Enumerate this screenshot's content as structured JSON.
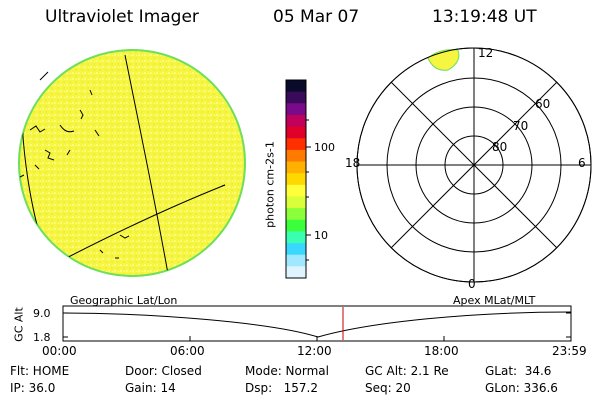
{
  "header": {
    "instrument": "Ultraviolet Imager",
    "date": "05 Mar 07",
    "time": "13:19:48 UT"
  },
  "colorbar": {
    "unit_label": "photon cm-2s-1",
    "ticks": [
      "100",
      "10"
    ],
    "colors": [
      "#0a0a2a",
      "#3a0a5a",
      "#7a0a8a",
      "#c0005a",
      "#e0002a",
      "#ff3000",
      "#ff7a00",
      "#ffb000",
      "#ffd800",
      "#ffff3a",
      "#d8ff3a",
      "#8aff3a",
      "#3aff3a",
      "#3affb0",
      "#3ad8ff",
      "#a0e8ff",
      "#e0f4ff"
    ]
  },
  "polar_plot": {
    "mlt_labels": [
      "12",
      "18",
      "6",
      "0"
    ],
    "lat_labels": [
      "60",
      "70",
      "80"
    ]
  },
  "altitude_plot": {
    "left_title": "Geographic Lat/Lon",
    "right_title": "Apex MLat/MLT",
    "ylabel": "GC Alt",
    "yticks": [
      "9.0",
      "1.8"
    ],
    "xticks": [
      "00:00",
      "06:00",
      "12:00",
      "18:00",
      "23:59"
    ],
    "current_time_marker_color": "#c00000"
  },
  "status": {
    "flt": "Flt: HOME",
    "ip": "IP: 36.0",
    "door": "Door: Closed",
    "gain": "Gain: 14",
    "mode": "Mode: Normal",
    "dsp": "Dsp:   157.2",
    "gcalt": "GC Alt: 2.1 Re",
    "seq": "Seq: 20",
    "glat": "GLat:  34.6",
    "glon": "GLon: 336.6"
  }
}
